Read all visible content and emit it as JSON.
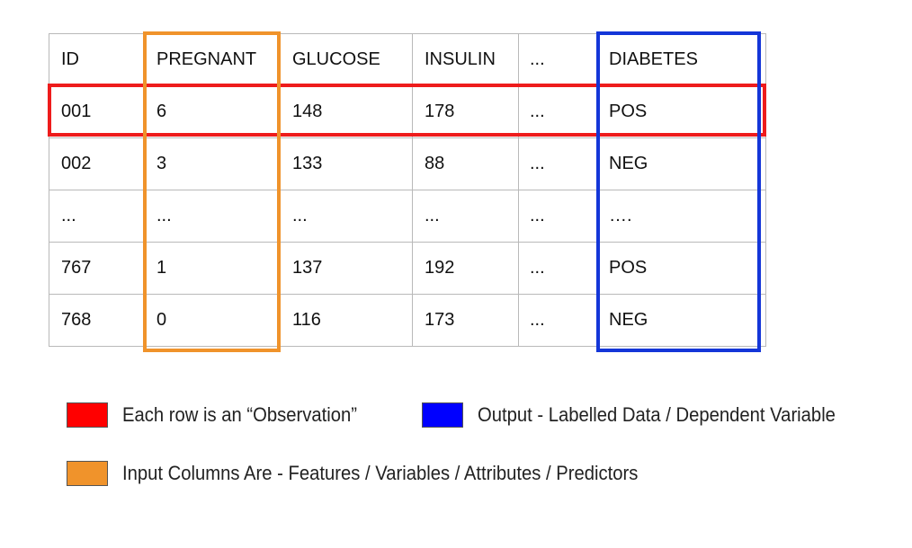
{
  "table": {
    "headers": [
      "ID",
      "PREGNANT",
      "GLUCOSE",
      "INSULIN",
      "...",
      "DIABETES"
    ],
    "rows": [
      [
        "001",
        "6",
        "148",
        "178",
        "...",
        "POS"
      ],
      [
        "002",
        "3",
        "133",
        "88",
        "...",
        "NEG"
      ],
      [
        "...",
        "...",
        "...",
        "...",
        "...",
        "…."
      ],
      [
        "767",
        "1",
        "137",
        "192",
        "...",
        "POS"
      ],
      [
        "768",
        "0",
        "116",
        "173",
        "...",
        "NEG"
      ]
    ]
  },
  "legend": {
    "observation": {
      "label": "Each row is an “Observation”",
      "color": "#ff0000"
    },
    "output": {
      "label": "Output - Labelled Data / Dependent Variable",
      "color": "#0000ff"
    },
    "input": {
      "label": "Input Columns Are  - Features  /  Variables /  Attributes  /  Predictors",
      "color": "#f0932b"
    }
  },
  "highlights": {
    "row_color": "#ee1c1c",
    "input_column_color": "#f0932b",
    "output_column_color": "#1436d8"
  }
}
